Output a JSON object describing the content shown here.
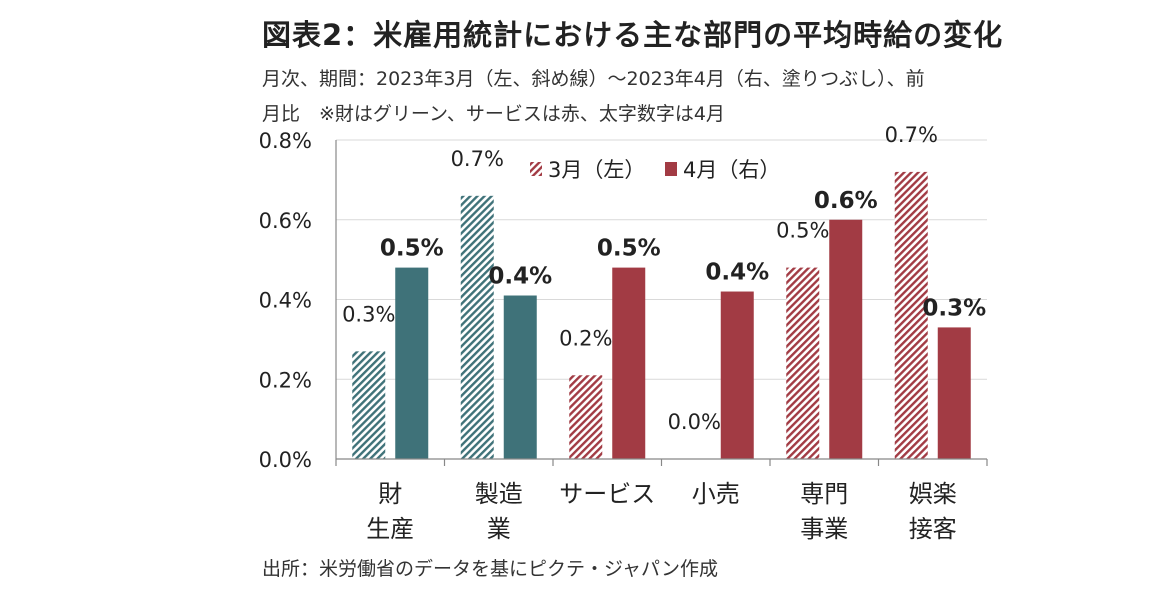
{
  "header": {
    "title": "図表2：米雇用統計における主な部門の平均時給の変化",
    "subtitle_line1": "月次、期間：2023年3月（左、斜め線）～2023年4月（右、塗りつぶし）、前",
    "subtitle_line2": "月比　※財はグリーン、サービスは赤、太字数字は4月"
  },
  "footer": {
    "source": "出所：米労働省のデータを基にピクテ・ジャパン作成"
  },
  "colors": {
    "goods": "#3f7279",
    "services": "#a23b44",
    "grid": "#d9d9d9",
    "axis": "#888888"
  },
  "chart_data": {
    "type": "bar",
    "title": "図表2：米雇用統計における主な部門の平均時給の変化",
    "xlabel": "",
    "ylabel": "",
    "ylim": [
      0,
      0.8
    ],
    "yticks": [
      0.0,
      0.2,
      0.4,
      0.6,
      0.8
    ],
    "ytick_labels": [
      "0.0%",
      "0.2%",
      "0.4%",
      "0.6%",
      "0.8%"
    ],
    "grid": true,
    "legend_position": "top",
    "categories": [
      {
        "lines": [
          "財",
          "生産"
        ],
        "group": "goods"
      },
      {
        "lines": [
          "製造",
          "業"
        ],
        "group": "goods"
      },
      {
        "lines": [
          "サービス"
        ],
        "group": "services"
      },
      {
        "lines": [
          "小売"
        ],
        "group": "services"
      },
      {
        "lines": [
          "専門",
          "事業"
        ],
        "group": "services"
      },
      {
        "lines": [
          "娯楽",
          "接客"
        ],
        "group": "services"
      }
    ],
    "series": [
      {
        "name": "3月（左）",
        "style": "hatched",
        "values": [
          0.27,
          0.66,
          0.21,
          0.0,
          0.48,
          0.72
        ],
        "labels": [
          "0.3%",
          "0.7%",
          "0.2%",
          "0.0%",
          "0.5%",
          "0.7%"
        ]
      },
      {
        "name": "4月（右）",
        "style": "solid",
        "values": [
          0.48,
          0.41,
          0.48,
          0.42,
          0.6,
          0.33
        ],
        "labels": [
          "0.5%",
          "0.4%",
          "0.5%",
          "0.4%",
          "0.6%",
          "0.3%"
        ]
      }
    ]
  }
}
